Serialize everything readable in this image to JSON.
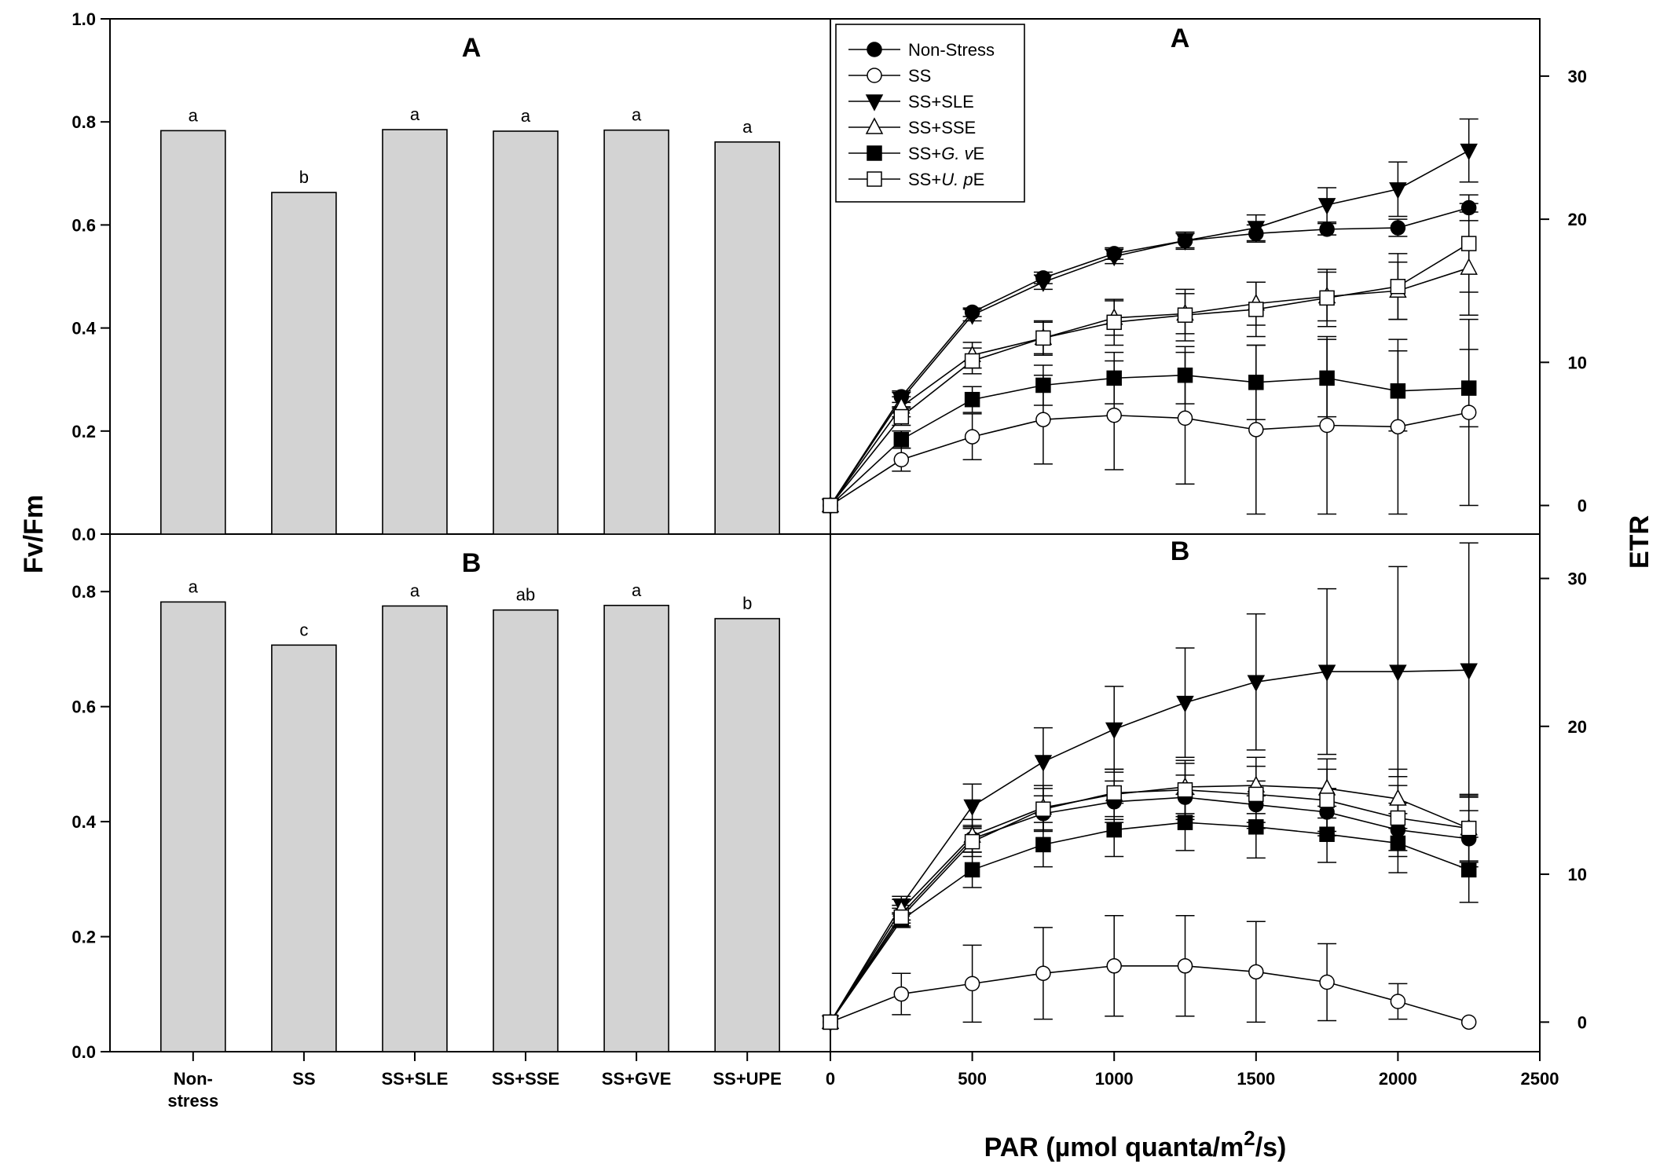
{
  "chart_data": [
    {
      "panel": "A",
      "type": "bar",
      "ylabel": "Fv/Fm",
      "ylim": [
        0,
        1.0
      ],
      "yticks": [
        "0.0",
        "0.2",
        "0.4",
        "0.6",
        "0.8",
        "1.0"
      ],
      "categories": [
        "Non-stress",
        "SS",
        "SS+SLE",
        "SS+SSE",
        "SS+GVE",
        "SS+UPE"
      ],
      "values": [
        0.783,
        0.663,
        0.785,
        0.782,
        0.784,
        0.761
      ],
      "letters": [
        "a",
        "b",
        "a",
        "a",
        "a",
        "a"
      ]
    },
    {
      "panel": "B",
      "type": "bar",
      "ylabel": "Fv/Fm",
      "ylim": [
        0,
        0.9
      ],
      "yticks": [
        "0.0",
        "0.2",
        "0.4",
        "0.6",
        "0.8"
      ],
      "categories": [
        "Non-stress",
        "SS",
        "SS+SLE",
        "SS+SSE",
        "SS+GVE",
        "SS+UPE"
      ],
      "values": [
        0.782,
        0.707,
        0.775,
        0.768,
        0.776,
        0.753
      ],
      "letters": [
        "a",
        "c",
        "a",
        "ab",
        "a",
        "b"
      ]
    },
    {
      "panel": "A",
      "type": "line",
      "xlabel": "PAR (µmol quanta/m2/s)",
      "ylabel": "ETR",
      "xlim": [
        0,
        2500
      ],
      "ylim": [
        -2,
        34
      ],
      "yticks": [
        "0",
        "10",
        "20",
        "30"
      ],
      "x": [
        0,
        250,
        500,
        750,
        1000,
        1250,
        1500,
        1750,
        2000,
        2250
      ],
      "legend_position": "top-left",
      "series": [
        {
          "name": "Non-Stress",
          "marker": "filled-circle",
          "values": [
            0,
            7.6,
            13.5,
            15.9,
            17.6,
            18.5,
            19.0,
            19.3,
            19.4,
            20.8
          ],
          "errors": [
            0,
            0.4,
            0.3,
            0.4,
            0.4,
            0.5,
            0.6,
            0.4,
            0.6,
            0.3
          ]
        },
        {
          "name": "SS",
          "marker": "open-circle",
          "values": [
            0,
            3.2,
            4.8,
            6.0,
            6.3,
            6.1,
            5.3,
            5.6,
            5.5,
            6.5
          ],
          "errors": [
            0,
            0.8,
            1.6,
            3.1,
            3.8,
            4.6,
            5.9,
            6.2,
            6.1,
            6.5
          ]
        },
        {
          "name": "SS+SLE",
          "marker": "filled-triangle-down",
          "values": [
            0,
            7.4,
            13.3,
            15.6,
            17.4,
            18.5,
            19.4,
            21.0,
            22.1,
            24.8
          ],
          "errors": [
            0,
            0.5,
            0.4,
            0.5,
            0.5,
            0.6,
            0.9,
            1.2,
            1.9,
            2.2
          ]
        },
        {
          "name": "SS+SSE",
          "marker": "open-triangle-up",
          "values": [
            0,
            6.9,
            10.5,
            11.7,
            13.1,
            13.4,
            14.1,
            14.6,
            15.0,
            16.6
          ],
          "errors": [
            0,
            0.7,
            0.9,
            1.2,
            1.2,
            1.4,
            1.5,
            1.7,
            2.0,
            3.3
          ]
        },
        {
          "name": "SS+G. vE",
          "marker": "filled-square",
          "values": [
            0,
            4.6,
            7.4,
            8.4,
            8.9,
            9.1,
            8.6,
            8.9,
            8.0,
            8.2
          ],
          "errors": [
            0,
            0.6,
            0.9,
            1.4,
            1.8,
            2.0,
            2.6,
            2.7,
            2.8,
            2.7
          ]
        },
        {
          "name": "SS+U. pE",
          "marker": "open-square",
          "values": [
            0,
            6.2,
            10.1,
            11.7,
            12.8,
            13.3,
            13.7,
            14.5,
            15.3,
            18.3
          ],
          "errors": [
            0,
            0.6,
            0.9,
            1.1,
            1.6,
            1.8,
            1.9,
            2.0,
            2.3,
            3.4
          ]
        }
      ]
    },
    {
      "panel": "B",
      "type": "line",
      "xlabel": "PAR (µmol quanta/m2/s)",
      "ylabel": "ETR",
      "xlim": [
        0,
        2500
      ],
      "ylim": [
        -2,
        33
      ],
      "yticks": [
        "0",
        "10",
        "20",
        "30"
      ],
      "xticks": [
        "0",
        "500",
        "1000",
        "1500",
        "2000",
        "2500"
      ],
      "x": [
        0,
        250,
        500,
        750,
        1000,
        1250,
        1500,
        1750,
        2000,
        2250
      ],
      "series": [
        {
          "name": "Non-Stress",
          "marker": "filled-circle",
          "values": [
            0,
            7.3,
            12.4,
            14.1,
            14.9,
            15.2,
            14.7,
            14.2,
            13.0,
            12.4
          ],
          "errors": [
            0,
            0.6,
            0.9,
            1.2,
            1.4,
            1.5,
            1.6,
            1.6,
            1.8,
            1.9
          ]
        },
        {
          "name": "SS",
          "marker": "open-circle",
          "values": [
            0,
            1.9,
            2.6,
            3.3,
            3.8,
            3.8,
            3.4,
            2.7,
            1.4,
            0
          ],
          "errors": [
            0,
            1.4,
            2.6,
            3.1,
            3.4,
            3.4,
            3.4,
            2.6,
            1.2,
            0
          ]
        },
        {
          "name": "SS+SLE",
          "marker": "filled-triangle-down",
          "values": [
            0,
            7.9,
            14.6,
            17.6,
            19.8,
            21.6,
            23.0,
            23.7,
            23.7,
            23.8
          ],
          "errors": [
            0,
            0.6,
            1.5,
            2.3,
            2.9,
            3.7,
            4.6,
            5.6,
            7.1,
            8.6
          ]
        },
        {
          "name": "SS+SSE",
          "marker": "open-triangle-up",
          "values": [
            0,
            7.6,
            12.6,
            14.5,
            15.4,
            15.9,
            16.0,
            15.8,
            15.1,
            13.1
          ],
          "errors": [
            0,
            0.7,
            1.1,
            1.5,
            1.7,
            1.8,
            1.9,
            2.0,
            2.0,
            2.3
          ]
        },
        {
          "name": "SS+G. vE",
          "marker": "filled-square",
          "values": [
            0,
            6.9,
            10.3,
            12.0,
            13.0,
            13.5,
            13.2,
            12.7,
            12.1,
            10.3
          ],
          "errors": [
            0,
            0.5,
            1.2,
            1.5,
            1.8,
            1.9,
            2.1,
            1.9,
            2.0,
            2.2
          ]
        },
        {
          "name": "SS+U. pE",
          "marker": "open-square",
          "values": [
            0,
            7.1,
            12.2,
            14.4,
            15.5,
            15.7,
            15.4,
            15.0,
            13.8,
            13.1
          ],
          "errors": [
            0,
            0.6,
            1.0,
            1.4,
            1.6,
            1.8,
            1.9,
            2.1,
            2.2,
            2.2
          ]
        }
      ]
    }
  ],
  "labels": {
    "panel_a": "A",
    "panel_b": "B",
    "fvfm": "Fv/Fm",
    "etr": "ETR",
    "par_prefix": "PAR (µmol quanta/m",
    "par_sup": "2",
    "par_suffix": "/s)"
  },
  "bar_category_lines": [
    [
      "Non-",
      "stress"
    ],
    [
      "SS"
    ],
    [
      "SS+SLE"
    ],
    [
      "SS+SSE"
    ],
    [
      "SS+GVE"
    ],
    [
      "SS+UPE"
    ]
  ],
  "legend": [
    {
      "marker": "filled-circle",
      "parts": [
        {
          "t": "Non-Stress",
          "i": false
        }
      ]
    },
    {
      "marker": "open-circle",
      "parts": [
        {
          "t": "SS",
          "i": false
        }
      ]
    },
    {
      "marker": "filled-triangle-down",
      "parts": [
        {
          "t": "SS+SLE",
          "i": false
        }
      ]
    },
    {
      "marker": "open-triangle-up",
      "parts": [
        {
          "t": "SS+SSE",
          "i": false
        }
      ]
    },
    {
      "marker": "filled-square",
      "parts": [
        {
          "t": "SS+",
          "i": false
        },
        {
          "t": "G. v",
          "i": true
        },
        {
          "t": "E",
          "i": false
        }
      ]
    },
    {
      "marker": "open-square",
      "parts": [
        {
          "t": "SS+",
          "i": false
        },
        {
          "t": "U. p",
          "i": true
        },
        {
          "t": "E",
          "i": false
        }
      ]
    }
  ],
  "colors": {
    "bar_fill": "#d3d3d3",
    "line": "#000000",
    "background": "#ffffff"
  }
}
